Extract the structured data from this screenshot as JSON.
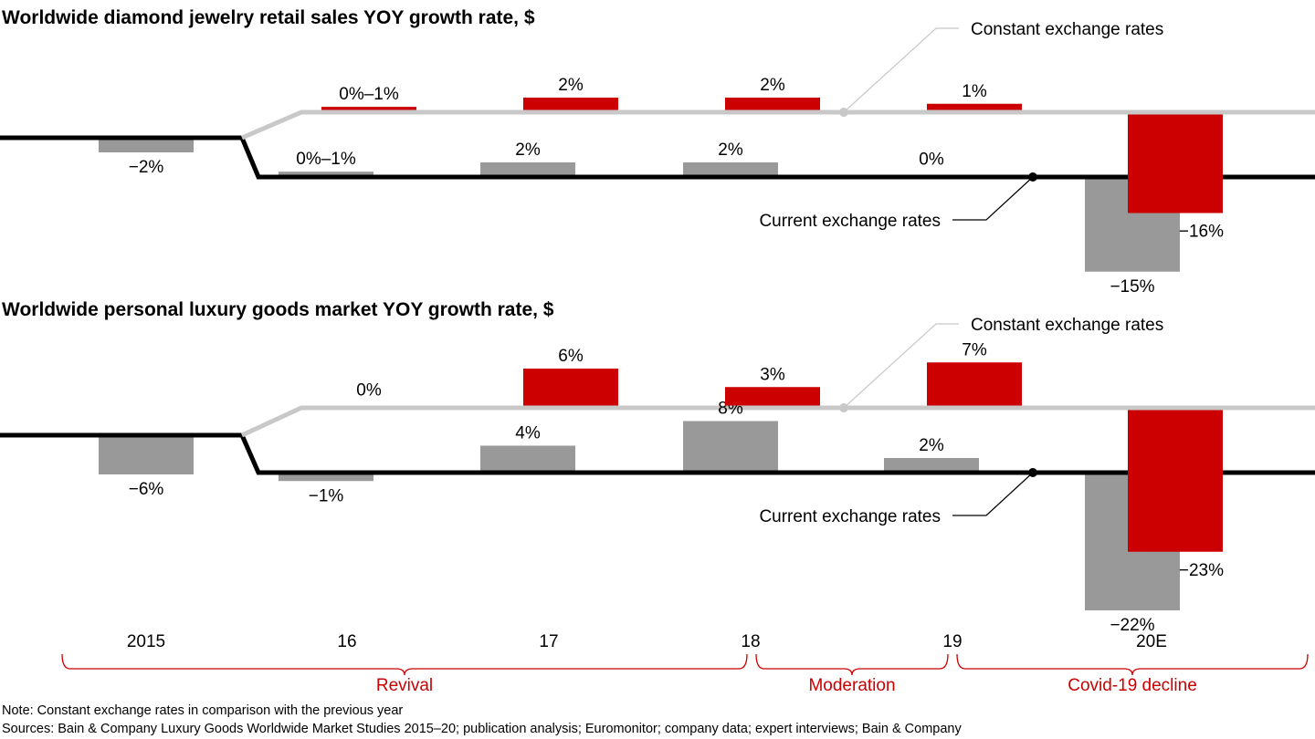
{
  "colors": {
    "constant": "#cc0000",
    "current": "#999999",
    "line_current": "#000000",
    "line_constant": "#c8c8c8",
    "bracket": "#cc0000"
  },
  "chart_data": [
    {
      "type": "bar",
      "title": "Worldwide diamond jewelry retail sales YOY growth rate, $",
      "categories": [
        "2015",
        "16",
        "17",
        "18",
        "19",
        "20E"
      ],
      "series": [
        {
          "name": "Current exchange rates",
          "values": [
            -2,
            0.5,
            2,
            2,
            0,
            -15
          ],
          "labels": [
            "−2%",
            "0%–1%",
            "2%",
            "2%",
            "0%",
            "−15%"
          ]
        },
        {
          "name": "Constant exchange rates",
          "values": [
            null,
            0.5,
            2,
            2,
            1,
            -16
          ],
          "labels": [
            "",
            "0%–1%",
            "2%",
            "2%",
            "1%",
            "−16%"
          ]
        }
      ]
    },
    {
      "type": "bar",
      "title": "Worldwide personal luxury goods market YOY growth rate, $",
      "categories": [
        "2015",
        "16",
        "17",
        "18",
        "19",
        "20E"
      ],
      "series": [
        {
          "name": "Current exchange rates",
          "values": [
            -6,
            -1,
            4,
            8,
            2,
            -22
          ],
          "labels": [
            "−6%",
            "−1%",
            "4%",
            "8%",
            "2%",
            "−22%"
          ]
        },
        {
          "name": "Constant exchange rates",
          "values": [
            null,
            0,
            6,
            3,
            7,
            -23
          ],
          "labels": [
            "",
            "0%",
            "6%",
            "3%",
            "7%",
            "−23%"
          ]
        }
      ]
    }
  ],
  "x_axis_labels": [
    "2015",
    "16",
    "17",
    "18",
    "19",
    "20E"
  ],
  "periods": [
    {
      "label": "Revival"
    },
    {
      "label": "Moderation"
    },
    {
      "label": "Covid-19 decline"
    }
  ],
  "footer": {
    "note": "Note: Constant exchange rates in comparison with the previous year",
    "sources": "Sources: Bain & Company Luxury Goods Worldwide Market Studies 2015–20; publication analysis; Euromonitor; company data; expert interviews; Bain & Company"
  }
}
